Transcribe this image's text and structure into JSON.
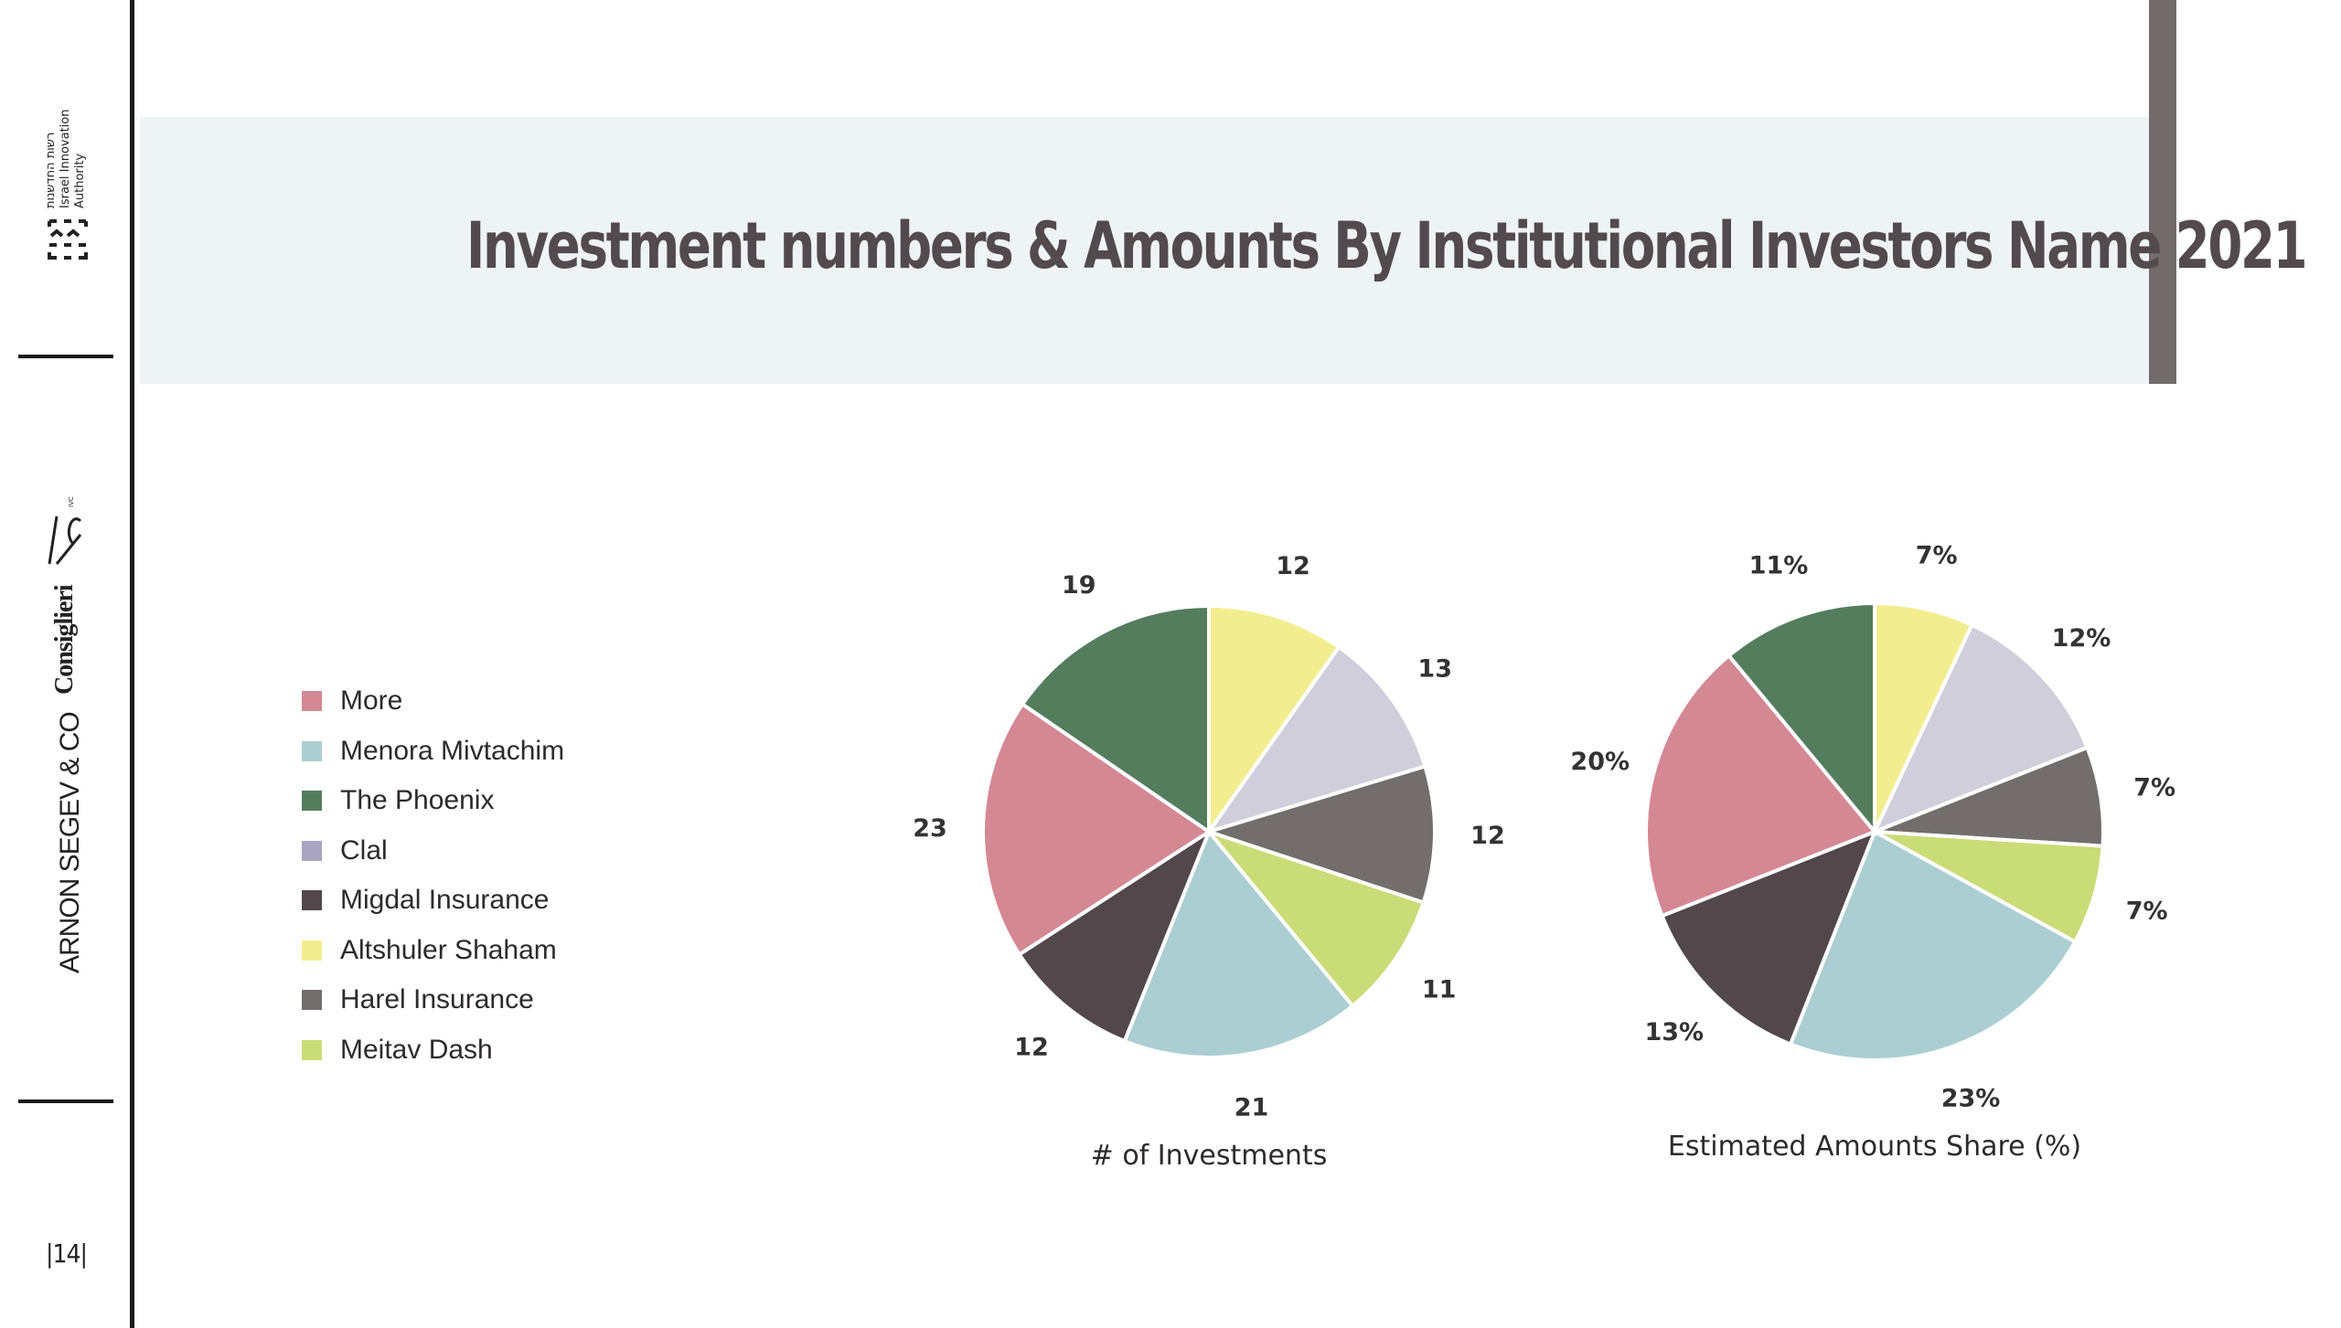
{
  "sidebar": {
    "org_text_hebrew": "רשות החדשנות",
    "org_text_line2": "Israel Innovation",
    "org_text_line3": "Authority",
    "ivc_logo": "IVC",
    "consiglieri_logo": "Consiglieri",
    "arnon_logo": "ARNON SEGEV & CO",
    "page_number": "|14|"
  },
  "header": {
    "title": "Investment numbers & Amounts By Institutional Investors Name 2021"
  },
  "colors": {
    "More": "#d48893",
    "Menora Mivtachim": "#abced3",
    "The Phoenix": "#547d5e",
    "Clal": "#d0ceda",
    "Migdal Insurance": "#52484b",
    "Altshuler Shaham": "#f2ee8f",
    "Harel Insurance": "#736e6d",
    "Meitav Dash": "#c9dc77"
  },
  "legend": [
    {
      "label": "More",
      "color": "#d48893"
    },
    {
      "label": "Menora Mivtachim",
      "color": "#abced3"
    },
    {
      "label": "The Phoenix",
      "color": "#547d5e"
    },
    {
      "label": "Clal",
      "color": "#aaa5c2"
    },
    {
      "label": "Migdal Insurance",
      "color": "#52484b"
    },
    {
      "label": "Altshuler Shaham",
      "color": "#f2ee8f"
    },
    {
      "label": "Harel Insurance",
      "color": "#736e6d"
    },
    {
      "label": "Meitav Dash",
      "color": "#c9dc77"
    }
  ],
  "chart_data": [
    {
      "type": "pie",
      "title": "# of Investments",
      "slices": [
        {
          "category": "Altshuler Shaham",
          "value": 12,
          "label": "12"
        },
        {
          "category": "Clal",
          "value": 13,
          "label": "13"
        },
        {
          "category": "Harel Insurance",
          "value": 12,
          "label": "12"
        },
        {
          "category": "Meitav Dash",
          "value": 11,
          "label": "11"
        },
        {
          "category": "Menora Mivtachim",
          "value": 21,
          "label": "21"
        },
        {
          "category": "Migdal Insurance",
          "value": 12,
          "label": "12"
        },
        {
          "category": "More",
          "value": 23,
          "label": "23"
        },
        {
          "category": "The Phoenix",
          "value": 19,
          "label": "19"
        }
      ]
    },
    {
      "type": "pie",
      "title": "Estimated Amounts Share (%)",
      "slices": [
        {
          "category": "Altshuler Shaham",
          "value": 7,
          "label": "7%"
        },
        {
          "category": "Clal",
          "value": 12,
          "label": "12%"
        },
        {
          "category": "Harel Insurance",
          "value": 7,
          "label": "7%"
        },
        {
          "category": "Meitav Dash",
          "value": 7,
          "label": "7%"
        },
        {
          "category": "Menora Mivtachim",
          "value": 23,
          "label": "23%"
        },
        {
          "category": "Migdal Insurance",
          "value": 13,
          "label": "13%"
        },
        {
          "category": "More",
          "value": 20,
          "label": "20%"
        },
        {
          "category": "The Phoenix",
          "value": 11,
          "label": "11%"
        }
      ]
    }
  ]
}
